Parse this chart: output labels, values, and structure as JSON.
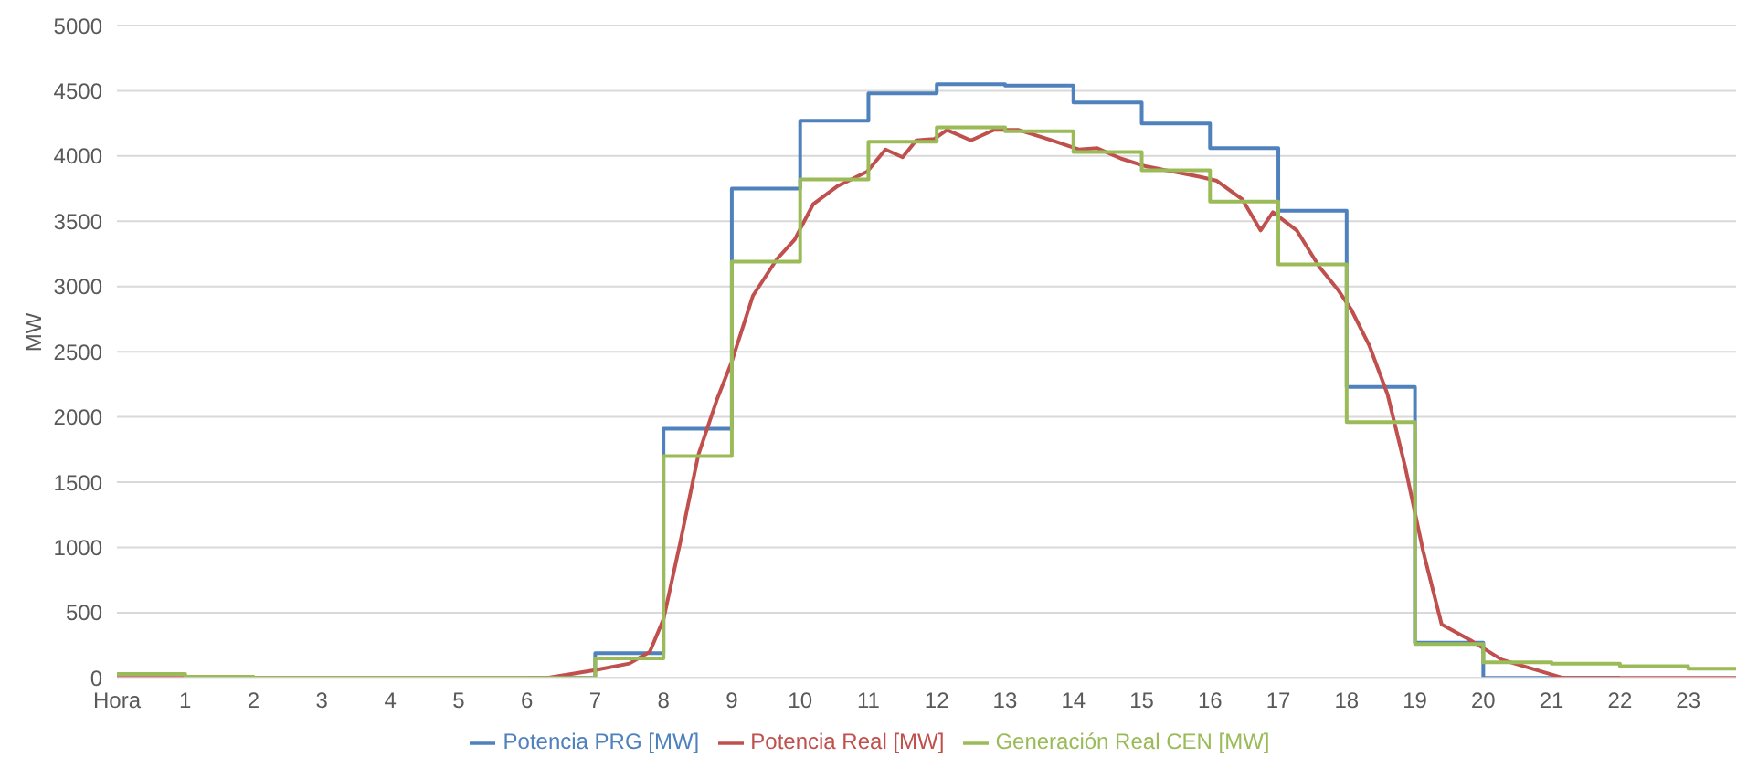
{
  "chart_data": {
    "type": "line",
    "ylabel": "MW",
    "xlim": [
      0,
      23.7
    ],
    "xticks": [
      {
        "value": 0,
        "label": "Hora"
      },
      1,
      2,
      3,
      4,
      5,
      6,
      7,
      8,
      9,
      10,
      11,
      12,
      13,
      14,
      15,
      16,
      17,
      18,
      19,
      20,
      21,
      22,
      23
    ],
    "ylim": [
      0,
      5000
    ],
    "yticks": [
      0,
      500,
      1000,
      1500,
      2000,
      2500,
      3000,
      3500,
      4000,
      4500,
      5000
    ],
    "grid": "y",
    "legend": "bottom",
    "series": [
      {
        "name": "Potencia PRG [MW]",
        "type": "step",
        "color": "#4f81bd",
        "x": [
          6,
          7,
          8,
          9,
          10,
          11,
          12,
          13,
          14,
          15,
          16,
          17,
          18,
          19,
          20,
          21,
          22
        ],
        "values": [
          0,
          190,
          1910,
          3750,
          4270,
          4480,
          4550,
          4540,
          4410,
          4250,
          4060,
          3580,
          2230,
          270,
          0,
          0,
          0
        ]
      },
      {
        "name": "Potencia Real [MW]",
        "type": "line",
        "color": "#c0504d",
        "x": [
          0,
          5,
          6.3,
          7,
          7.5,
          7.8,
          8,
          8.25,
          8.51,
          8.78,
          8.99,
          9.31,
          9.66,
          9.92,
          10.19,
          10.55,
          10.98,
          11.25,
          11.5,
          11.7,
          11.96,
          12.15,
          12.5,
          12.84,
          13.2,
          13.63,
          14.08,
          14.35,
          14.7,
          15.07,
          15.86,
          16.1,
          16.47,
          16.74,
          16.92,
          17.27,
          17.6,
          17.88,
          18.06,
          18.33,
          18.6,
          18.86,
          19.12,
          19.39,
          19.84,
          20.27,
          21.17,
          23.7
        ],
        "values": [
          0,
          0,
          0,
          60,
          110,
          200,
          450,
          1050,
          1710,
          2130,
          2410,
          2930,
          3210,
          3360,
          3630,
          3770,
          3880,
          4050,
          3990,
          4120,
          4130,
          4200,
          4120,
          4200,
          4200,
          4130,
          4050,
          4060,
          3980,
          3920,
          3840,
          3810,
          3670,
          3430,
          3570,
          3430,
          3150,
          2970,
          2830,
          2550,
          2170,
          1610,
          970,
          410,
          280,
          140,
          0,
          0
        ]
      },
      {
        "name": "Generación Real CEN [MW]",
        "type": "step",
        "color": "#9bbb59",
        "x": [
          0,
          1,
          2,
          3,
          4,
          5,
          6,
          7,
          8,
          9,
          10,
          11,
          12,
          13,
          14,
          15,
          16,
          17,
          18,
          19,
          20,
          21,
          22,
          23,
          23.7
        ],
        "values": [
          30,
          10,
          0,
          0,
          0,
          0,
          0,
          150,
          1700,
          3190,
          3820,
          4110,
          4220,
          4190,
          4030,
          3890,
          3650,
          3170,
          1960,
          260,
          120,
          110,
          90,
          70,
          70
        ]
      }
    ]
  }
}
